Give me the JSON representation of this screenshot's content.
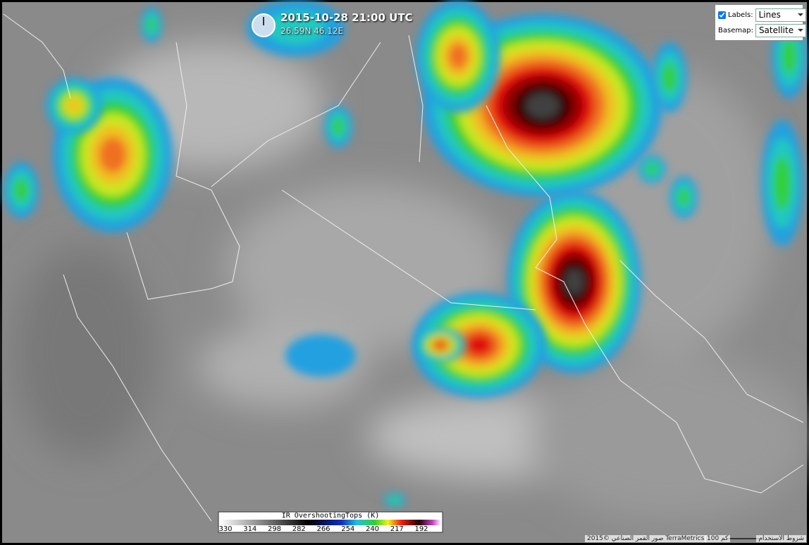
{
  "header": {
    "title": "2015-10-28 21:00 UTC",
    "coords": "26.59N 46.12E"
  },
  "controls": {
    "labels_label": "Labels:",
    "labels_value": "Lines",
    "basemap_label": "Basemap:",
    "basemap_value": "Satellite"
  },
  "legend": {
    "title": "IR OvershootingTops (K)",
    "ticks": [
      330,
      314,
      298,
      282,
      266,
      254,
      240,
      217,
      192
    ]
  },
  "footer": {
    "terms": "شروط الاستخدام",
    "scale": "100 كم",
    "credit": "2015© صور القمر الصناعي TerraMetrics"
  }
}
